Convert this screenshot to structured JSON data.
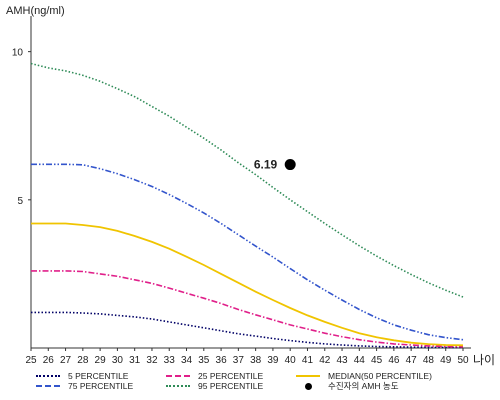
{
  "chart_data": {
    "type": "line",
    "title": "",
    "ylabel": "AMH(ng/ml)",
    "xlabel": "나이",
    "xlim": [
      25,
      50
    ],
    "ylim": [
      0,
      11
    ],
    "x_ticks": [
      25,
      26,
      27,
      28,
      29,
      30,
      31,
      32,
      33,
      34,
      35,
      36,
      37,
      38,
      39,
      40,
      41,
      42,
      43,
      44,
      45,
      46,
      47,
      48,
      49,
      50
    ],
    "y_ticks": [
      5,
      10
    ],
    "x": [
      25,
      26,
      27,
      28,
      29,
      30,
      31,
      32,
      33,
      34,
      35,
      36,
      37,
      38,
      39,
      40,
      41,
      42,
      43,
      44,
      45,
      46,
      47,
      48,
      49,
      50
    ],
    "series": [
      {
        "name": "5 PERCENTILE",
        "color": "#000066",
        "style": "dotted",
        "values": [
          1.2,
          1.2,
          1.2,
          1.18,
          1.15,
          1.1,
          1.05,
          0.98,
          0.88,
          0.78,
          0.68,
          0.58,
          0.48,
          0.4,
          0.32,
          0.25,
          0.19,
          0.14,
          0.1,
          0.07,
          0.05,
          0.04,
          0.03,
          0.02,
          0.02,
          0.01
        ]
      },
      {
        "name": "25 PERCENTILE",
        "color": "#e0208a",
        "style": "dashdot",
        "values": [
          2.6,
          2.6,
          2.6,
          2.58,
          2.5,
          2.42,
          2.3,
          2.18,
          2.02,
          1.85,
          1.68,
          1.5,
          1.3,
          1.12,
          0.95,
          0.78,
          0.64,
          0.5,
          0.38,
          0.28,
          0.2,
          0.14,
          0.1,
          0.07,
          0.05,
          0.04
        ]
      },
      {
        "name": "MEDIAN(50 PERCENTILE)",
        "color": "#f0c400",
        "style": "solid",
        "values": [
          4.2,
          4.2,
          4.2,
          4.15,
          4.08,
          3.95,
          3.78,
          3.58,
          3.35,
          3.08,
          2.8,
          2.5,
          2.2,
          1.9,
          1.62,
          1.35,
          1.1,
          0.88,
          0.68,
          0.5,
          0.36,
          0.26,
          0.18,
          0.13,
          0.1,
          0.09
        ]
      },
      {
        "name": "75 PERCENTILE",
        "color": "#3355cc",
        "style": "dashdotdot",
        "values": [
          6.2,
          6.2,
          6.2,
          6.18,
          6.05,
          5.88,
          5.68,
          5.45,
          5.18,
          4.88,
          4.56,
          4.2,
          3.82,
          3.44,
          3.07,
          2.68,
          2.3,
          1.95,
          1.62,
          1.3,
          1.02,
          0.78,
          0.6,
          0.45,
          0.35,
          0.28
        ]
      },
      {
        "name": "95 PERCENTILE",
        "color": "#2e8b57",
        "style": "dotted",
        "values": [
          9.6,
          9.45,
          9.35,
          9.2,
          9.0,
          8.75,
          8.48,
          8.15,
          7.82,
          7.45,
          7.08,
          6.68,
          6.25,
          5.85,
          5.42,
          5.0,
          4.6,
          4.2,
          3.82,
          3.45,
          3.1,
          2.78,
          2.48,
          2.2,
          1.95,
          1.72
        ]
      }
    ],
    "annotation": {
      "label": "6.19",
      "x": 40,
      "y": 6.19,
      "legend": "수진자의 AMH 농도"
    },
    "legend_position": "bottom"
  }
}
